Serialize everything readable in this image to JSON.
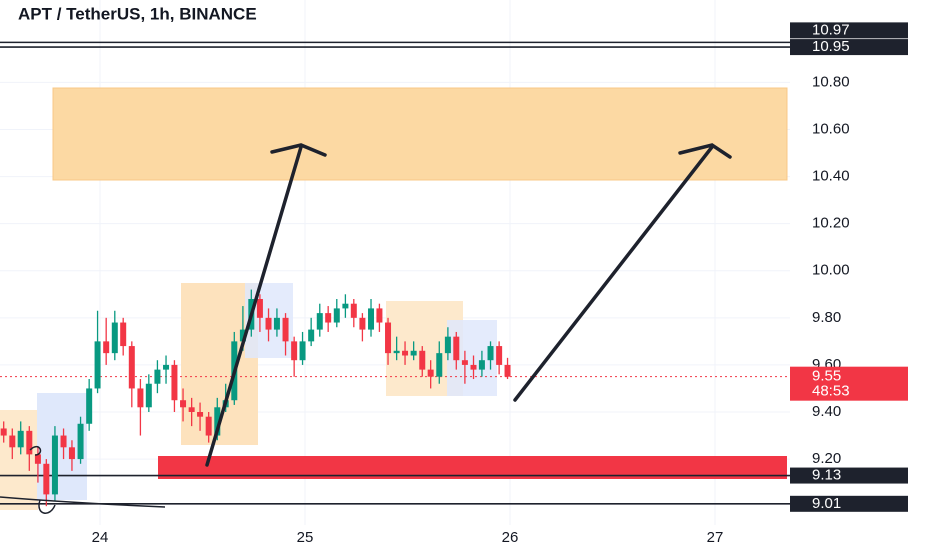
{
  "chart_data": {
    "type": "candlestick",
    "title": "APT / TetherUS, 1h, BINANCE",
    "up_color": "#089981",
    "down_color": "#f23645",
    "xlim": [
      23.512,
      27.366
    ],
    "xticks": [
      24,
      25,
      26,
      27
    ],
    "ylim": [
      8.92,
      11.15
    ],
    "yticks": [
      {
        "value": 10.8,
        "label": "10.80"
      },
      {
        "value": 10.6,
        "label": "10.60"
      },
      {
        "value": 10.4,
        "label": "10.40"
      },
      {
        "value": 10.2,
        "label": "10.20"
      },
      {
        "value": 10.0,
        "label": "10.00"
      },
      {
        "value": 9.8,
        "label": "9.80"
      },
      {
        "value": 9.6,
        "label": "9.60"
      },
      {
        "value": 9.4,
        "label": "9.40"
      },
      {
        "value": 9.2,
        "label": "9.20"
      }
    ],
    "grid": true,
    "price_lines": [
      10.97,
      10.95,
      9.13,
      9.01
    ],
    "last_price": 9.55,
    "countdown": "48:53",
    "x": [
      23.53,
      23.572,
      23.613,
      23.655,
      23.697,
      23.738,
      23.78,
      23.822,
      23.863,
      23.905,
      23.947,
      23.988,
      24.03,
      24.072,
      24.113,
      24.155,
      24.197,
      24.238,
      24.28,
      24.322,
      24.363,
      24.405,
      24.447,
      24.488,
      24.53,
      24.572,
      24.613,
      24.655,
      24.697,
      24.738,
      24.78,
      24.822,
      24.863,
      24.905,
      24.947,
      24.988,
      25.03,
      25.072,
      25.113,
      25.155,
      25.197,
      25.238,
      25.28,
      25.322,
      25.363,
      25.405,
      25.447,
      25.488,
      25.53,
      25.572,
      25.613,
      25.655,
      25.697,
      25.738,
      25.78,
      25.822,
      25.863,
      25.905,
      25.947,
      25.988
    ],
    "open": [
      9.33,
      9.3,
      9.25,
      9.32,
      9.22,
      9.18,
      9.05,
      9.3,
      9.25,
      9.2,
      9.35,
      9.5,
      9.7,
      9.65,
      9.78,
      9.68,
      9.5,
      9.42,
      9.52,
      9.58,
      9.6,
      9.45,
      9.42,
      9.4,
      9.38,
      9.3,
      9.42,
      9.45,
      9.7,
      9.75,
      9.88,
      9.8,
      9.75,
      9.8,
      9.7,
      9.62,
      9.7,
      9.75,
      9.82,
      9.78,
      9.84,
      9.86,
      9.8,
      9.75,
      9.84,
      9.78,
      9.65,
      9.66,
      9.64,
      9.66,
      9.58,
      9.55,
      9.65,
      9.72,
      9.62,
      9.6,
      9.58,
      9.62,
      9.68,
      9.6
    ],
    "high": [
      9.36,
      9.33,
      9.36,
      9.34,
      9.25,
      9.2,
      9.34,
      9.33,
      9.28,
      9.38,
      9.54,
      9.83,
      9.8,
      9.83,
      9.8,
      9.7,
      9.54,
      9.56,
      9.62,
      9.64,
      9.62,
      9.5,
      9.46,
      9.44,
      9.4,
      9.46,
      9.52,
      9.74,
      9.85,
      9.92,
      9.9,
      9.84,
      9.84,
      9.82,
      9.72,
      9.74,
      9.8,
      9.86,
      9.85,
      9.88,
      9.9,
      9.88,
      9.82,
      9.88,
      9.86,
      9.8,
      9.72,
      9.7,
      9.7,
      9.68,
      9.62,
      9.7,
      9.76,
      9.74,
      9.66,
      9.64,
      9.66,
      9.7,
      9.7,
      9.63
    ],
    "low": [
      9.27,
      9.2,
      9.22,
      9.15,
      9.1,
      9.0,
      9.02,
      9.2,
      9.15,
      9.18,
      9.32,
      9.48,
      9.6,
      9.62,
      9.64,
      9.42,
      9.3,
      9.4,
      9.48,
      9.52,
      9.4,
      9.36,
      9.34,
      9.32,
      9.27,
      9.28,
      9.4,
      9.43,
      9.66,
      9.72,
      9.74,
      9.7,
      9.72,
      9.64,
      9.55,
      9.6,
      9.68,
      9.72,
      9.74,
      9.76,
      9.8,
      9.76,
      9.7,
      9.72,
      9.74,
      9.6,
      9.62,
      9.6,
      9.62,
      9.55,
      9.5,
      9.52,
      9.62,
      9.58,
      9.52,
      9.54,
      9.55,
      9.58,
      9.56,
      9.54
    ],
    "close": [
      9.3,
      9.25,
      9.32,
      9.22,
      9.18,
      9.05,
      9.3,
      9.25,
      9.2,
      9.35,
      9.5,
      9.7,
      9.65,
      9.78,
      9.68,
      9.5,
      9.42,
      9.52,
      9.58,
      9.6,
      9.45,
      9.42,
      9.4,
      9.38,
      9.3,
      9.42,
      9.45,
      9.7,
      9.75,
      9.88,
      9.8,
      9.75,
      9.8,
      9.7,
      9.62,
      9.7,
      9.75,
      9.82,
      9.78,
      9.84,
      9.86,
      9.8,
      9.75,
      9.84,
      9.78,
      9.65,
      9.66,
      9.64,
      9.66,
      9.58,
      9.55,
      9.65,
      9.72,
      9.62,
      9.6,
      9.58,
      9.62,
      9.68,
      9.6,
      9.55
    ]
  }
}
